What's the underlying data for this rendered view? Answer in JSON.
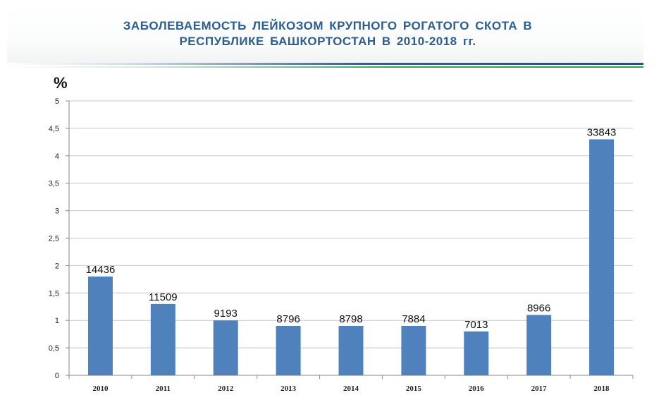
{
  "header": {
    "title_line1": "ЗАБОЛЕВАЕМОСТЬ  ЛЕЙКОЗОМ  КРУПНОГО  РОГАТОГО  СКОТА  В",
    "title_line2": "РЕСПУБЛИКЕ  БАШКОРТОСТАН  В 2010-2018 гг."
  },
  "colors": {
    "title": "#2c5d8f",
    "bar": "#4f81bd",
    "grid": "#c8c8c8"
  },
  "chart_data": {
    "type": "bar",
    "title": "ЗАБОЛЕВАЕМОСТЬ  ЛЕЙКОЗОМ  КРУПНОГО  РОГАТОГО  СКОТА  В РЕСПУБЛИКЕ  БАШКОРТОСТАН  В 2010-2018 гг.",
    "ylabel": "%",
    "xlabel": "",
    "categories": [
      "2010",
      "2011",
      "2012",
      "2013",
      "2014",
      "2015",
      "2016",
      "2017",
      "2018"
    ],
    "values": [
      1.8,
      1.3,
      1.0,
      0.9,
      0.9,
      0.9,
      0.8,
      1.1,
      4.3
    ],
    "data_labels": [
      "14436",
      "11509",
      "9193",
      "8796",
      "8798",
      "7884",
      "7013",
      "8966",
      "33843"
    ],
    "ylim": [
      0,
      5
    ],
    "yticks": [
      0,
      0.5,
      1,
      1.5,
      2,
      2.5,
      3,
      3.5,
      4,
      4.5,
      5
    ],
    "ytick_labels": [
      "0",
      "0,5",
      "1",
      "1,5",
      "2",
      "2,5",
      "3",
      "3,5",
      "4",
      "4,5",
      "5"
    ],
    "grid": true,
    "legend": "none"
  }
}
